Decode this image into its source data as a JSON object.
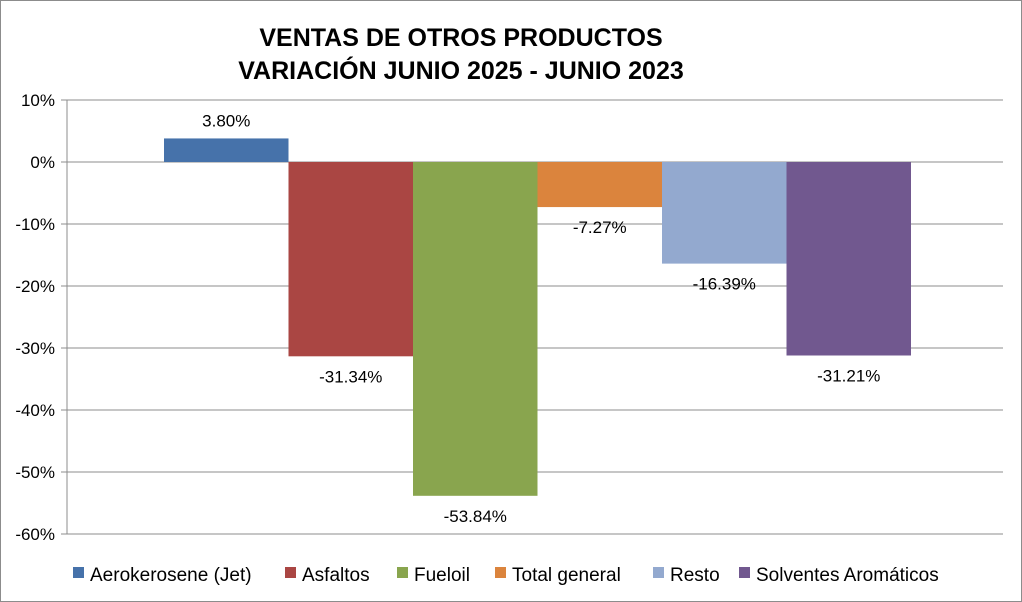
{
  "chart_data": {
    "type": "bar",
    "title_lines": [
      "VENTAS DE OTROS PRODUCTOS",
      "VARIACIÓN JUNIO 2025 - JUNIO 2023"
    ],
    "xlabel": "",
    "ylabel": "",
    "ylim": [
      -60,
      10
    ],
    "yticks": [
      10,
      0,
      -10,
      -20,
      -30,
      -40,
      -50,
      -60
    ],
    "ytick_labels": [
      "10%",
      "0%",
      "-10%",
      "-20%",
      "-30%",
      "-40%",
      "-50%",
      "-60%"
    ],
    "grid": true,
    "legend_position": "bottom",
    "series": [
      {
        "name": "Aerokerosene (Jet)",
        "value": 3.8,
        "label": "3.80%",
        "color": "#4672AA"
      },
      {
        "name": "Asfaltos",
        "value": -31.34,
        "label": "-31.34%",
        "color": "#AA4643"
      },
      {
        "name": "Fueloil",
        "value": -53.84,
        "label": "-53.84%",
        "color": "#89A54E"
      },
      {
        "name": "Total general",
        "value": -7.27,
        "label": "-7.27%",
        "color": "#DB843D"
      },
      {
        "name": "Resto",
        "value": -16.39,
        "label": "-16.39%",
        "color": "#93A9CF"
      },
      {
        "name": "Solventes Aromáticos",
        "value": -31.21,
        "label": "-31.21%",
        "color": "#71588F"
      }
    ]
  }
}
